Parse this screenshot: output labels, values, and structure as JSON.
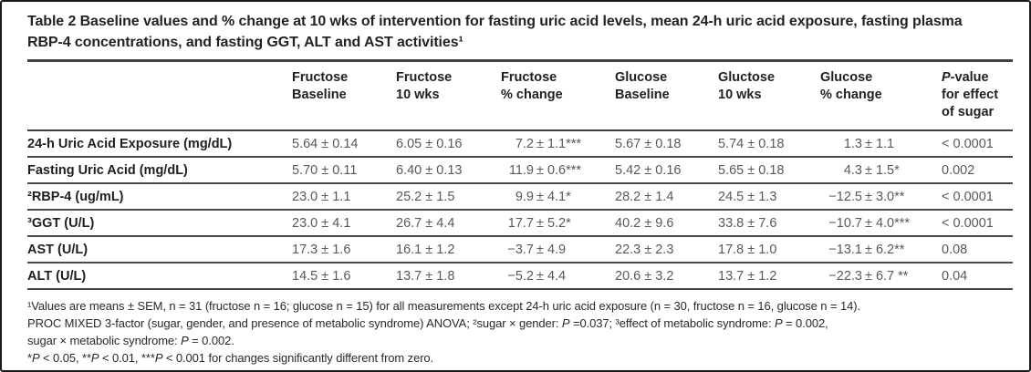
{
  "title": "Table 2 Baseline values and % change at 10 wks of intervention for fasting uric acid levels, mean 24-h uric acid exposure, fasting plasma RBP-4 concentrations, and fasting GGT, ALT and AST activities¹",
  "table": {
    "columns": [
      [
        ""
      ],
      [
        "Fructose",
        "Baseline"
      ],
      [
        "Fructose",
        "10 wks"
      ],
      [
        "Fructose",
        "% change"
      ],
      [
        "Glucose",
        "Baseline"
      ],
      [
        "Gluctose",
        "10 wks"
      ],
      [
        "Glucose",
        "% change"
      ],
      [
        "P-value",
        "for effect",
        "of sugar"
      ]
    ],
    "rows": [
      {
        "label": "24-h Uric Acid Exposure (mg/dL)",
        "values": [
          "5.64 ± 0.14",
          "6.05 ± 0.16",
          "7.2 ± 1.1***",
          "5.67 ± 0.18",
          "5.74 ± 0.18",
          "1.3 ± 1.1",
          "< 0.0001"
        ]
      },
      {
        "label": "Fasting Uric Acid (mg/dL)",
        "values": [
          "5.70 ± 0.11",
          "6.40 ± 0.13",
          "11.9 ± 0.6***",
          "5.42 ± 0.16",
          "5.65 ± 0.18",
          "4.3 ± 1.5*",
          "0.002"
        ]
      },
      {
        "label": "²RBP-4 (ug/mL)",
        "values": [
          "23.0 ± 1.1",
          "25.2 ± 1.5",
          "9.9 ± 4.1*",
          "28.2 ± 1.4",
          "24.5 ± 1.3",
          "−12.5 ± 3.0**",
          "< 0.0001"
        ]
      },
      {
        "label": "³GGT (U/L)",
        "values": [
          "23.0 ± 4.1",
          "26.7 ± 4.4",
          "17.7 ± 5.2*",
          "40.2 ± 9.6",
          "33.8 ± 7.6",
          "−10.7 ± 4.0***",
          "< 0.0001"
        ]
      },
      {
        "label": "AST (U/L)",
        "values": [
          "17.3 ± 1.6",
          "16.1 ± 1.2",
          "−3.7 ± 4.9",
          "22.3 ± 2.3",
          "17.8 ± 1.0",
          "−13.1 ± 6.2**",
          "0.08"
        ]
      },
      {
        "label": "ALT (U/L)",
        "values": [
          "14.5 ± 1.6",
          "13.7 ± 1.8",
          "−5.2 ± 4.4",
          "20.6 ± 3.2",
          "13.7 ± 1.2",
          "−22.3 ± 6.7 **",
          "0.04"
        ]
      }
    ]
  },
  "footnotes": [
    "¹Values are means ± SEM, n = 31 (fructose n = 16; glucose n = 15) for all measurements except 24-h uric acid exposure (n = 30, fructose n = 16, glucose n = 14).",
    "PROC MIXED 3-factor (sugar, gender, and presence of metabolic syndrome) ANOVA; ²sugar × gender: P =0.037; ³effect of metabolic syndrome: P = 0.002,",
    "sugar × metabolic syndrome: P = 0.002.",
    "*P < 0.05, **P < 0.01, ***P < 0.001 for changes significantly different from zero."
  ],
  "colors": {
    "frame_border": "#1b1b1b",
    "rule_dark": "#414144",
    "row_rule": "#4a4a4d",
    "text_dark": "#202124",
    "text_value": "#58595c"
  }
}
